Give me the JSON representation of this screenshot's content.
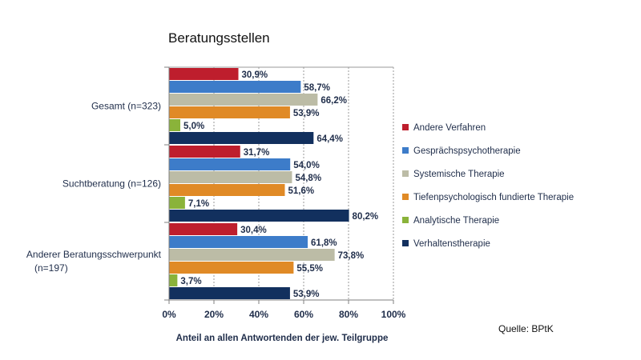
{
  "title": "Beratungsstellen",
  "source": "Quelle: BPtK",
  "chart_data": {
    "type": "bar",
    "orientation": "horizontal",
    "categories": [
      [
        "Gesamt (n=323)"
      ],
      [
        "Suchtberatung (n=126)"
      ],
      [
        "Anderer Beratungsschwerpunkt",
        "(n=197)"
      ]
    ],
    "series": [
      {
        "name": "Andere Verfahren",
        "color": "#be1e2d",
        "values": [
          30.9,
          31.7,
          30.4
        ],
        "labels": [
          "30,9%",
          "31,7%",
          "30,4%"
        ]
      },
      {
        "name": "Gesprächspsychotherapie",
        "color": "#3d7cc9",
        "values": [
          58.7,
          54.0,
          61.8
        ],
        "labels": [
          "58,7%",
          "54,0%",
          "61,8%"
        ]
      },
      {
        "name": "Systemische Therapie",
        "color": "#bcbca6",
        "values": [
          66.2,
          54.8,
          73.8
        ],
        "labels": [
          "66,2%",
          "54,8%",
          "73,8%"
        ]
      },
      {
        "name": "Tiefenpsychologisch fundierte Therapie",
        "color": "#e08a26",
        "values": [
          53.9,
          51.6,
          55.5
        ],
        "labels": [
          "53,9%",
          "51,6%",
          "55,5%"
        ]
      },
      {
        "name": "Analytische Therapie",
        "color": "#8ab33a",
        "values": [
          5.0,
          7.1,
          3.7
        ],
        "labels": [
          "5,0%",
          "7,1%",
          "3,7%"
        ]
      },
      {
        "name": "Verhaltenstherapie",
        "color": "#12305e",
        "values": [
          64.4,
          80.2,
          53.9
        ],
        "labels": [
          "64,4%",
          "80,2%",
          "53,9%"
        ]
      }
    ],
    "xlim": [
      0,
      100
    ],
    "xticks": [
      0,
      20,
      40,
      60,
      80,
      100
    ],
    "xtick_labels": [
      "0%",
      "20%",
      "40%",
      "60%",
      "80%",
      "100%"
    ],
    "xlabel": "Anteil an allen Antwortenden der jew. Teilgruppe",
    "grid": true,
    "legend_position": "right"
  }
}
